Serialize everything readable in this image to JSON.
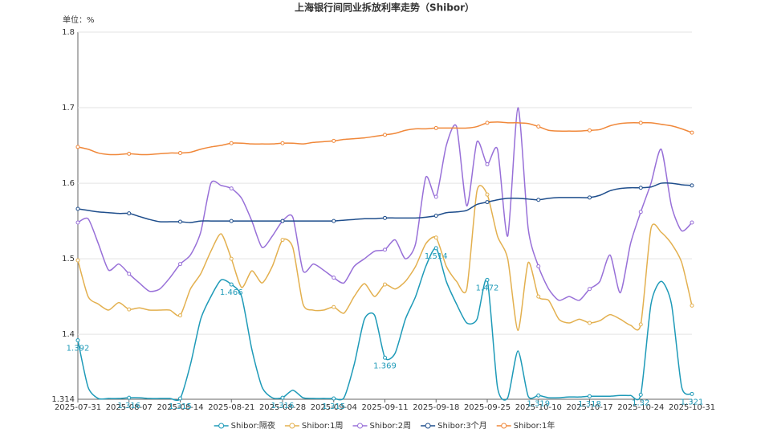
{
  "chart_data": {
    "type": "line",
    "title": "上海银行间同业拆放利率走势（Shibor）",
    "unit": "单位：%",
    "categories": [
      "2025-07-31",
      null,
      null,
      null,
      null,
      "2025-08-07",
      null,
      null,
      null,
      null,
      "2025-08-14",
      null,
      null,
      null,
      null,
      "2025-08-21",
      null,
      null,
      null,
      null,
      "2025-08-28",
      null,
      null,
      null,
      null,
      "2025-09-04",
      null,
      null,
      null,
      null,
      "2025-09-11",
      null,
      null,
      null,
      null,
      "2025-09-18",
      null,
      null,
      null,
      null,
      "2025-09-25",
      null,
      null,
      null,
      null,
      "2025-10-10",
      null,
      null,
      null,
      null,
      "2025-10-17",
      null,
      null,
      null,
      null,
      "2025-10-24",
      null,
      null,
      null,
      null,
      "2025-10-31"
    ],
    "series": [
      {
        "name": "Shibor:隔夜",
        "color": "#1e9ab8",
        "values": [
          1.392,
          1.33,
          1.315,
          1.315,
          1.315,
          1.316,
          1.316,
          1.315,
          1.315,
          1.315,
          1.315,
          1.36,
          1.42,
          1.45,
          1.472,
          1.466,
          1.45,
          1.38,
          1.33,
          1.316,
          1.316,
          1.326,
          1.316,
          1.315,
          1.315,
          1.315,
          1.316,
          1.36,
          1.42,
          1.425,
          1.369,
          1.375,
          1.42,
          1.45,
          1.49,
          1.514,
          1.47,
          1.44,
          1.415,
          1.42,
          1.472,
          1.33,
          1.316,
          1.378,
          1.318,
          1.319,
          1.316,
          1.316,
          1.317,
          1.317,
          1.318,
          1.318,
          1.318,
          1.319,
          1.319,
          1.32,
          1.44,
          1.47,
          1.44,
          1.33,
          1.321
        ]
      },
      {
        "name": "Shibor:1周",
        "color": "#e3b04f",
        "values": [
          1.498,
          1.45,
          1.44,
          1.432,
          1.442,
          1.433,
          1.435,
          1.432,
          1.432,
          1.432,
          1.425,
          1.46,
          1.48,
          1.51,
          1.533,
          1.5,
          1.462,
          1.484,
          1.468,
          1.49,
          1.525,
          1.515,
          1.44,
          1.432,
          1.432,
          1.436,
          1.428,
          1.45,
          1.467,
          1.45,
          1.466,
          1.46,
          1.47,
          1.49,
          1.52,
          1.528,
          1.49,
          1.47,
          1.46,
          1.59,
          1.585,
          1.53,
          1.5,
          1.405,
          1.495,
          1.45,
          1.445,
          1.42,
          1.415,
          1.42,
          1.415,
          1.418,
          1.426,
          1.42,
          1.412,
          1.413,
          1.54,
          1.535,
          1.52,
          1.495,
          1.438
        ]
      },
      {
        "name": "Shibor:2周",
        "color": "#9870d8",
        "values": [
          1.548,
          1.553,
          1.52,
          1.485,
          1.493,
          1.48,
          1.468,
          1.457,
          1.46,
          1.475,
          1.493,
          1.505,
          1.535,
          1.6,
          1.597,
          1.593,
          1.58,
          1.55,
          1.515,
          1.53,
          1.55,
          1.555,
          1.484,
          1.493,
          1.485,
          1.475,
          1.468,
          1.49,
          1.5,
          1.51,
          1.512,
          1.525,
          1.5,
          1.52,
          1.608,
          1.582,
          1.65,
          1.675,
          1.57,
          1.655,
          1.625,
          1.645,
          1.53,
          1.7,
          1.54,
          1.49,
          1.46,
          1.445,
          1.45,
          1.445,
          1.46,
          1.47,
          1.505,
          1.455,
          1.52,
          1.562,
          1.6,
          1.645,
          1.57,
          1.537,
          1.548
        ]
      },
      {
        "name": "Shibor:3个月",
        "color": "#1f4e8c",
        "values": [
          1.566,
          1.564,
          1.562,
          1.561,
          1.56,
          1.56,
          1.556,
          1.552,
          1.549,
          1.549,
          1.549,
          1.548,
          1.55,
          1.55,
          1.55,
          1.55,
          1.55,
          1.55,
          1.55,
          1.55,
          1.55,
          1.55,
          1.55,
          1.55,
          1.55,
          1.55,
          1.551,
          1.552,
          1.553,
          1.553,
          1.554,
          1.554,
          1.554,
          1.554,
          1.555,
          1.557,
          1.561,
          1.562,
          1.564,
          1.572,
          1.575,
          1.578,
          1.58,
          1.58,
          1.579,
          1.578,
          1.58,
          1.581,
          1.581,
          1.581,
          1.581,
          1.584,
          1.59,
          1.593,
          1.594,
          1.594,
          1.595,
          1.6,
          1.6,
          1.598,
          1.597
        ]
      },
      {
        "name": "Shibor:1年",
        "color": "#f0883a",
        "values": [
          1.648,
          1.645,
          1.64,
          1.638,
          1.638,
          1.639,
          1.638,
          1.638,
          1.639,
          1.64,
          1.64,
          1.641,
          1.645,
          1.648,
          1.65,
          1.653,
          1.653,
          1.652,
          1.652,
          1.652,
          1.653,
          1.653,
          1.652,
          1.654,
          1.655,
          1.656,
          1.658,
          1.659,
          1.66,
          1.662,
          1.664,
          1.666,
          1.67,
          1.672,
          1.672,
          1.673,
          1.673,
          1.673,
          1.673,
          1.675,
          1.68,
          1.681,
          1.68,
          1.68,
          1.679,
          1.675,
          1.67,
          1.669,
          1.669,
          1.669,
          1.67,
          1.671,
          1.676,
          1.679,
          1.68,
          1.68,
          1.68,
          1.678,
          1.676,
          1.672,
          1.667
        ]
      }
    ],
    "ylim": [
      1.314,
      1.8
    ],
    "yticks": [
      1.314,
      1.4,
      1.5,
      1.6,
      1.7,
      1.8
    ],
    "grid": true
  }
}
